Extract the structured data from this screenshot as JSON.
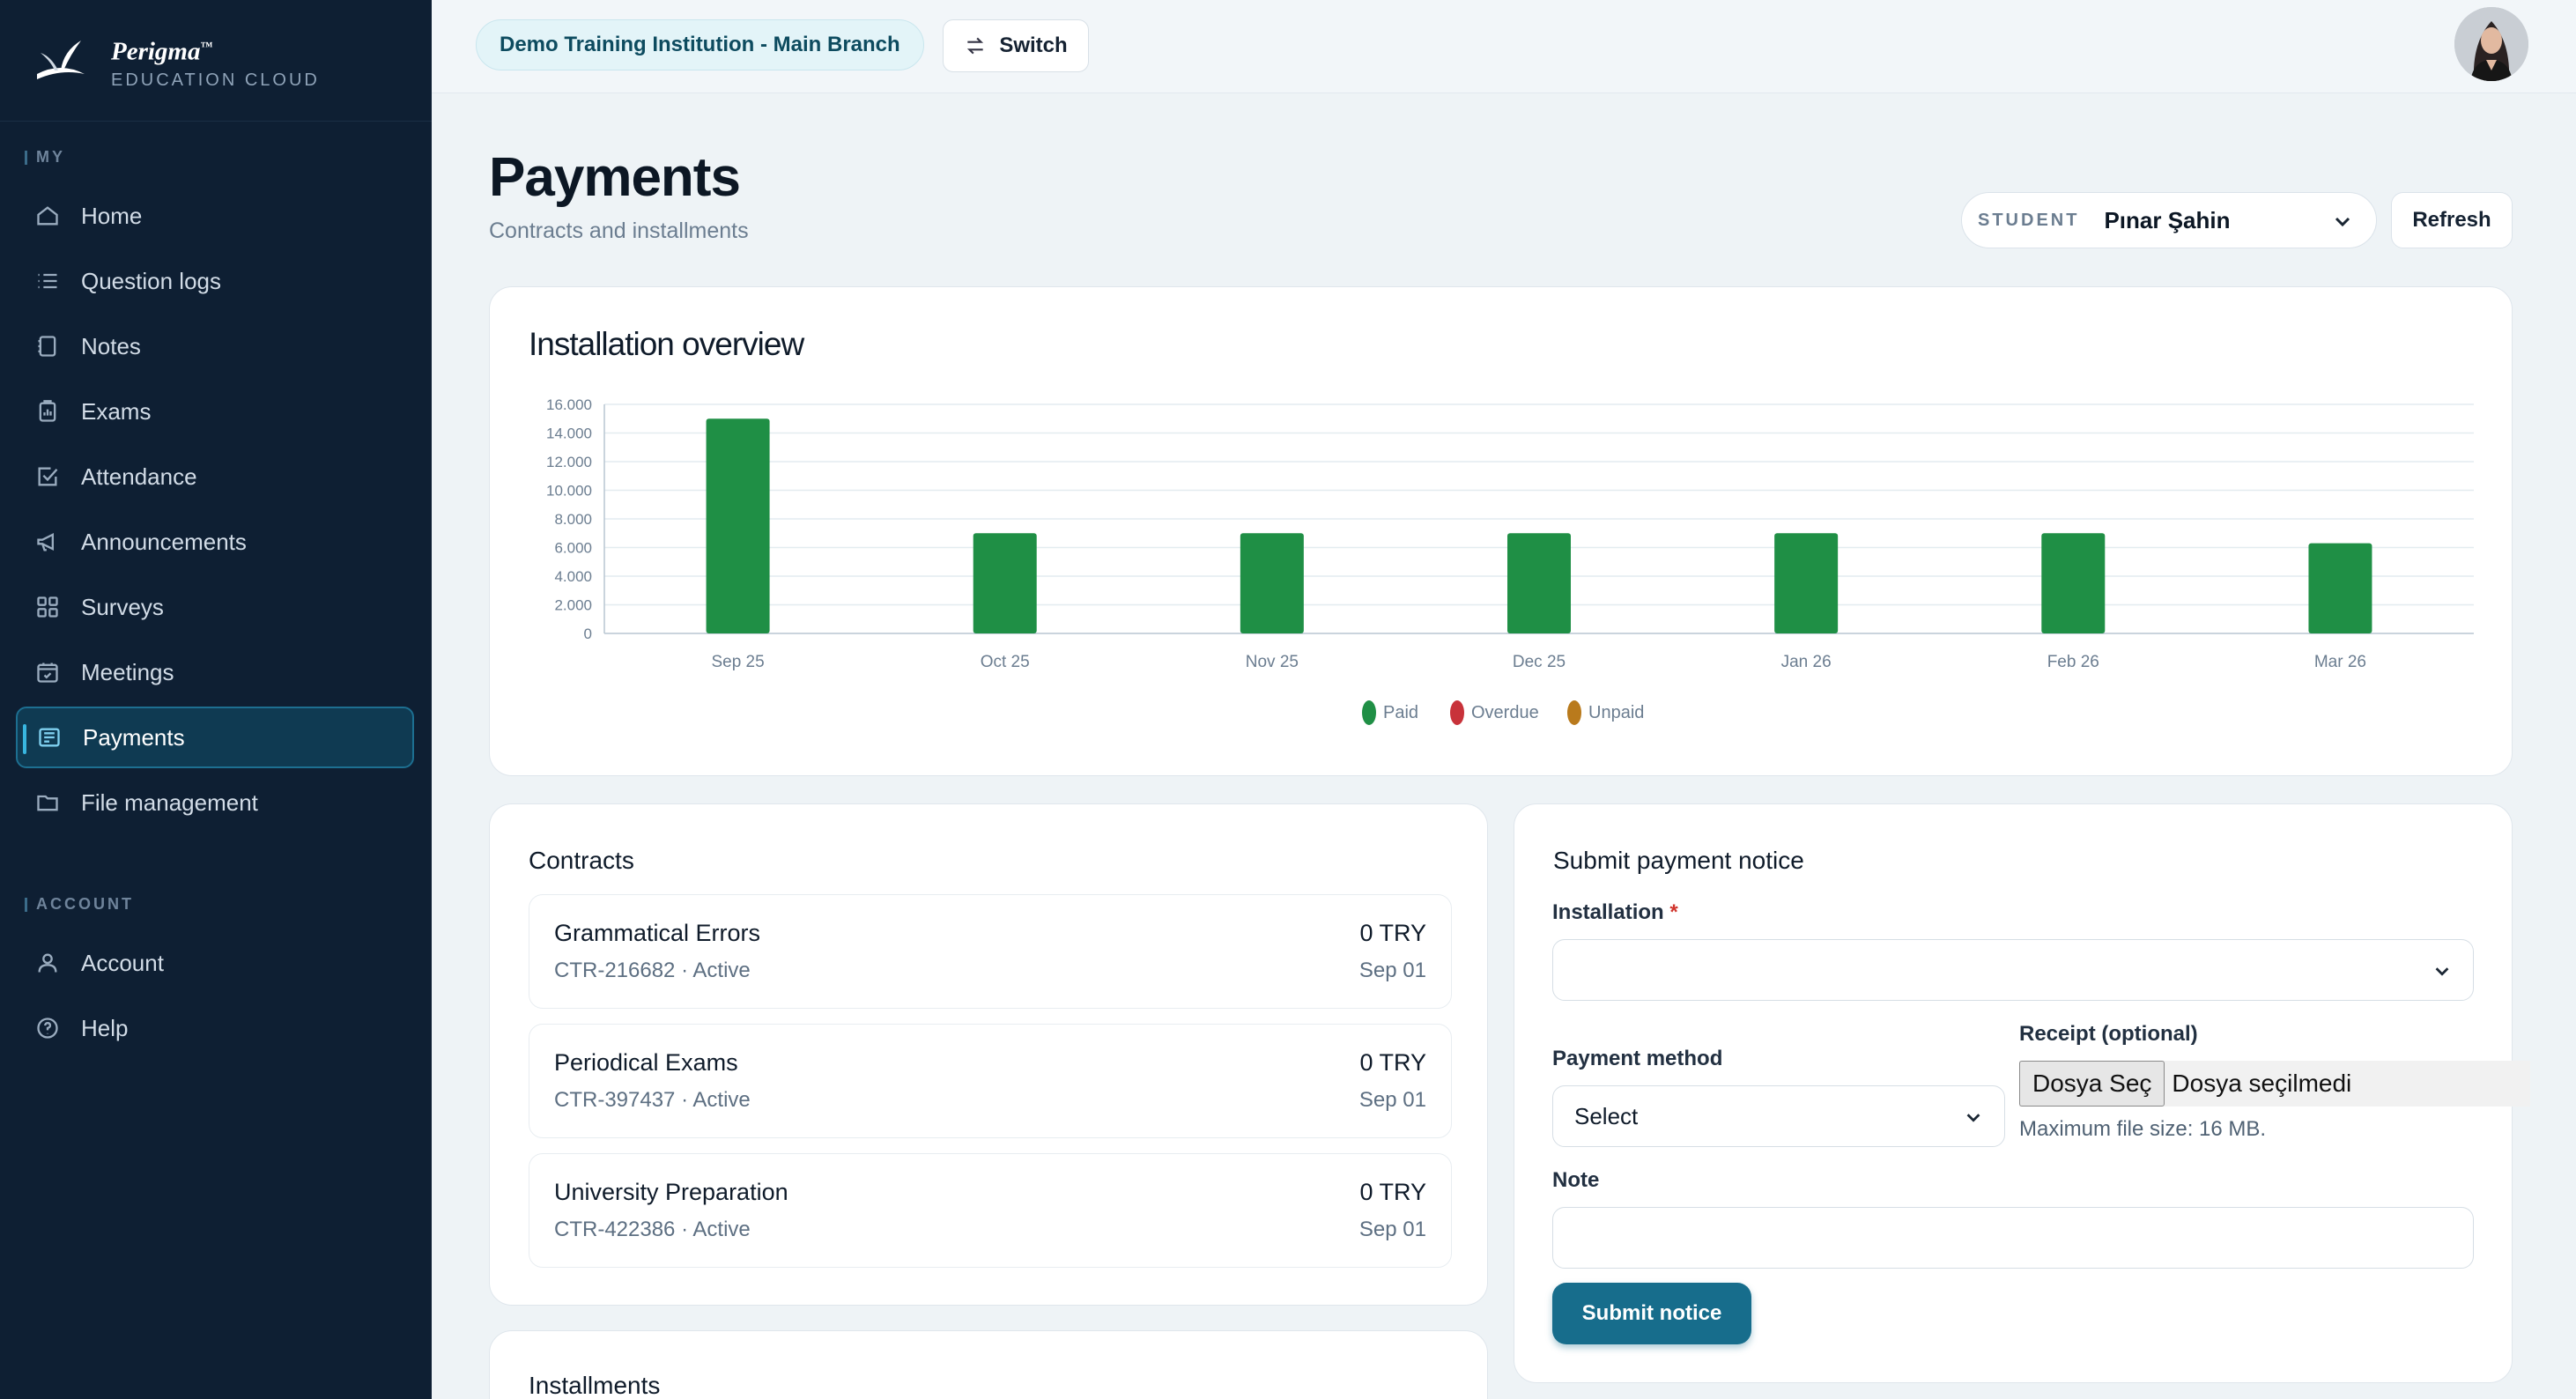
{
  "brand": {
    "name": "Perigma",
    "trademark": "™",
    "tagline": "EDUCATION CLOUD"
  },
  "sidebar": {
    "my_label": "MY",
    "account_label": "ACCOUNT",
    "items": [
      {
        "label": "Home",
        "icon": "home-icon"
      },
      {
        "label": "Question logs",
        "icon": "list-icon"
      },
      {
        "label": "Notes",
        "icon": "note-icon"
      },
      {
        "label": "Exams",
        "icon": "exam-icon"
      },
      {
        "label": "Attendance",
        "icon": "check-square-icon"
      },
      {
        "label": "Announcements",
        "icon": "megaphone-icon"
      },
      {
        "label": "Surveys",
        "icon": "grid-icon"
      },
      {
        "label": "Meetings",
        "icon": "calendar-check-icon"
      },
      {
        "label": "Payments",
        "icon": "payments-icon",
        "active": true
      },
      {
        "label": "File management",
        "icon": "folder-icon"
      }
    ],
    "account_items": [
      {
        "label": "Account",
        "icon": "user-icon"
      },
      {
        "label": "Help",
        "icon": "help-icon"
      }
    ]
  },
  "topbar": {
    "branch": "Demo Training Institution - Main Branch",
    "switch_label": "Switch"
  },
  "page": {
    "title": "Payments",
    "subtitle": "Contracts and installments",
    "student_label": "STUDENT",
    "student_name": "Pınar Şahin",
    "refresh_label": "Refresh"
  },
  "chart_data": {
    "type": "bar",
    "title": "Installation overview",
    "categories": [
      "Sep 25",
      "Oct 25",
      "Nov 25",
      "Dec 25",
      "Jan 26",
      "Feb 26",
      "Mar 26"
    ],
    "series": [
      {
        "name": "Paid",
        "color": "#1f8f45",
        "values": [
          15000,
          7000,
          7000,
          7000,
          7000,
          7000,
          6300
        ]
      },
      {
        "name": "Overdue",
        "color": "#c8323a",
        "values": [
          0,
          0,
          0,
          0,
          0,
          0,
          0
        ]
      },
      {
        "name": "Unpaid",
        "color": "#b97a1c",
        "values": [
          0,
          0,
          0,
          0,
          0,
          0,
          0
        ]
      }
    ],
    "yticks": [
      "16.000",
      "14.000",
      "12.000",
      "10.000",
      "8.000",
      "6.000",
      "4.000",
      "2.000",
      "0"
    ],
    "ylim": [
      0,
      16000
    ],
    "grid": true,
    "legend": "bottom-center"
  },
  "contracts": {
    "title": "Contracts",
    "items": [
      {
        "name": "Grammatical Errors",
        "meta": "CTR-216682 · Active",
        "amount": "0 TRY",
        "date": "Sep 01"
      },
      {
        "name": "Periodical Exams",
        "meta": "CTR-397437 · Active",
        "amount": "0 TRY",
        "date": "Sep 01"
      },
      {
        "name": "University Preparation",
        "meta": "CTR-422386 · Active",
        "amount": "0 TRY",
        "date": "Sep 01"
      }
    ]
  },
  "installments": {
    "title": "Installments"
  },
  "notice": {
    "title": "Submit payment notice",
    "installation_label": "Installation",
    "required_mark": "*",
    "installation_value": "",
    "payment_method_label": "Payment method",
    "payment_method_value": "Select",
    "receipt_label": "Receipt (optional)",
    "file_button": "Dosya Seç",
    "file_status": "Dosya seçilmedi",
    "file_hint": "Maximum file size: 16 MB.",
    "note_label": "Note",
    "note_value": "",
    "submit_label": "Submit notice"
  }
}
